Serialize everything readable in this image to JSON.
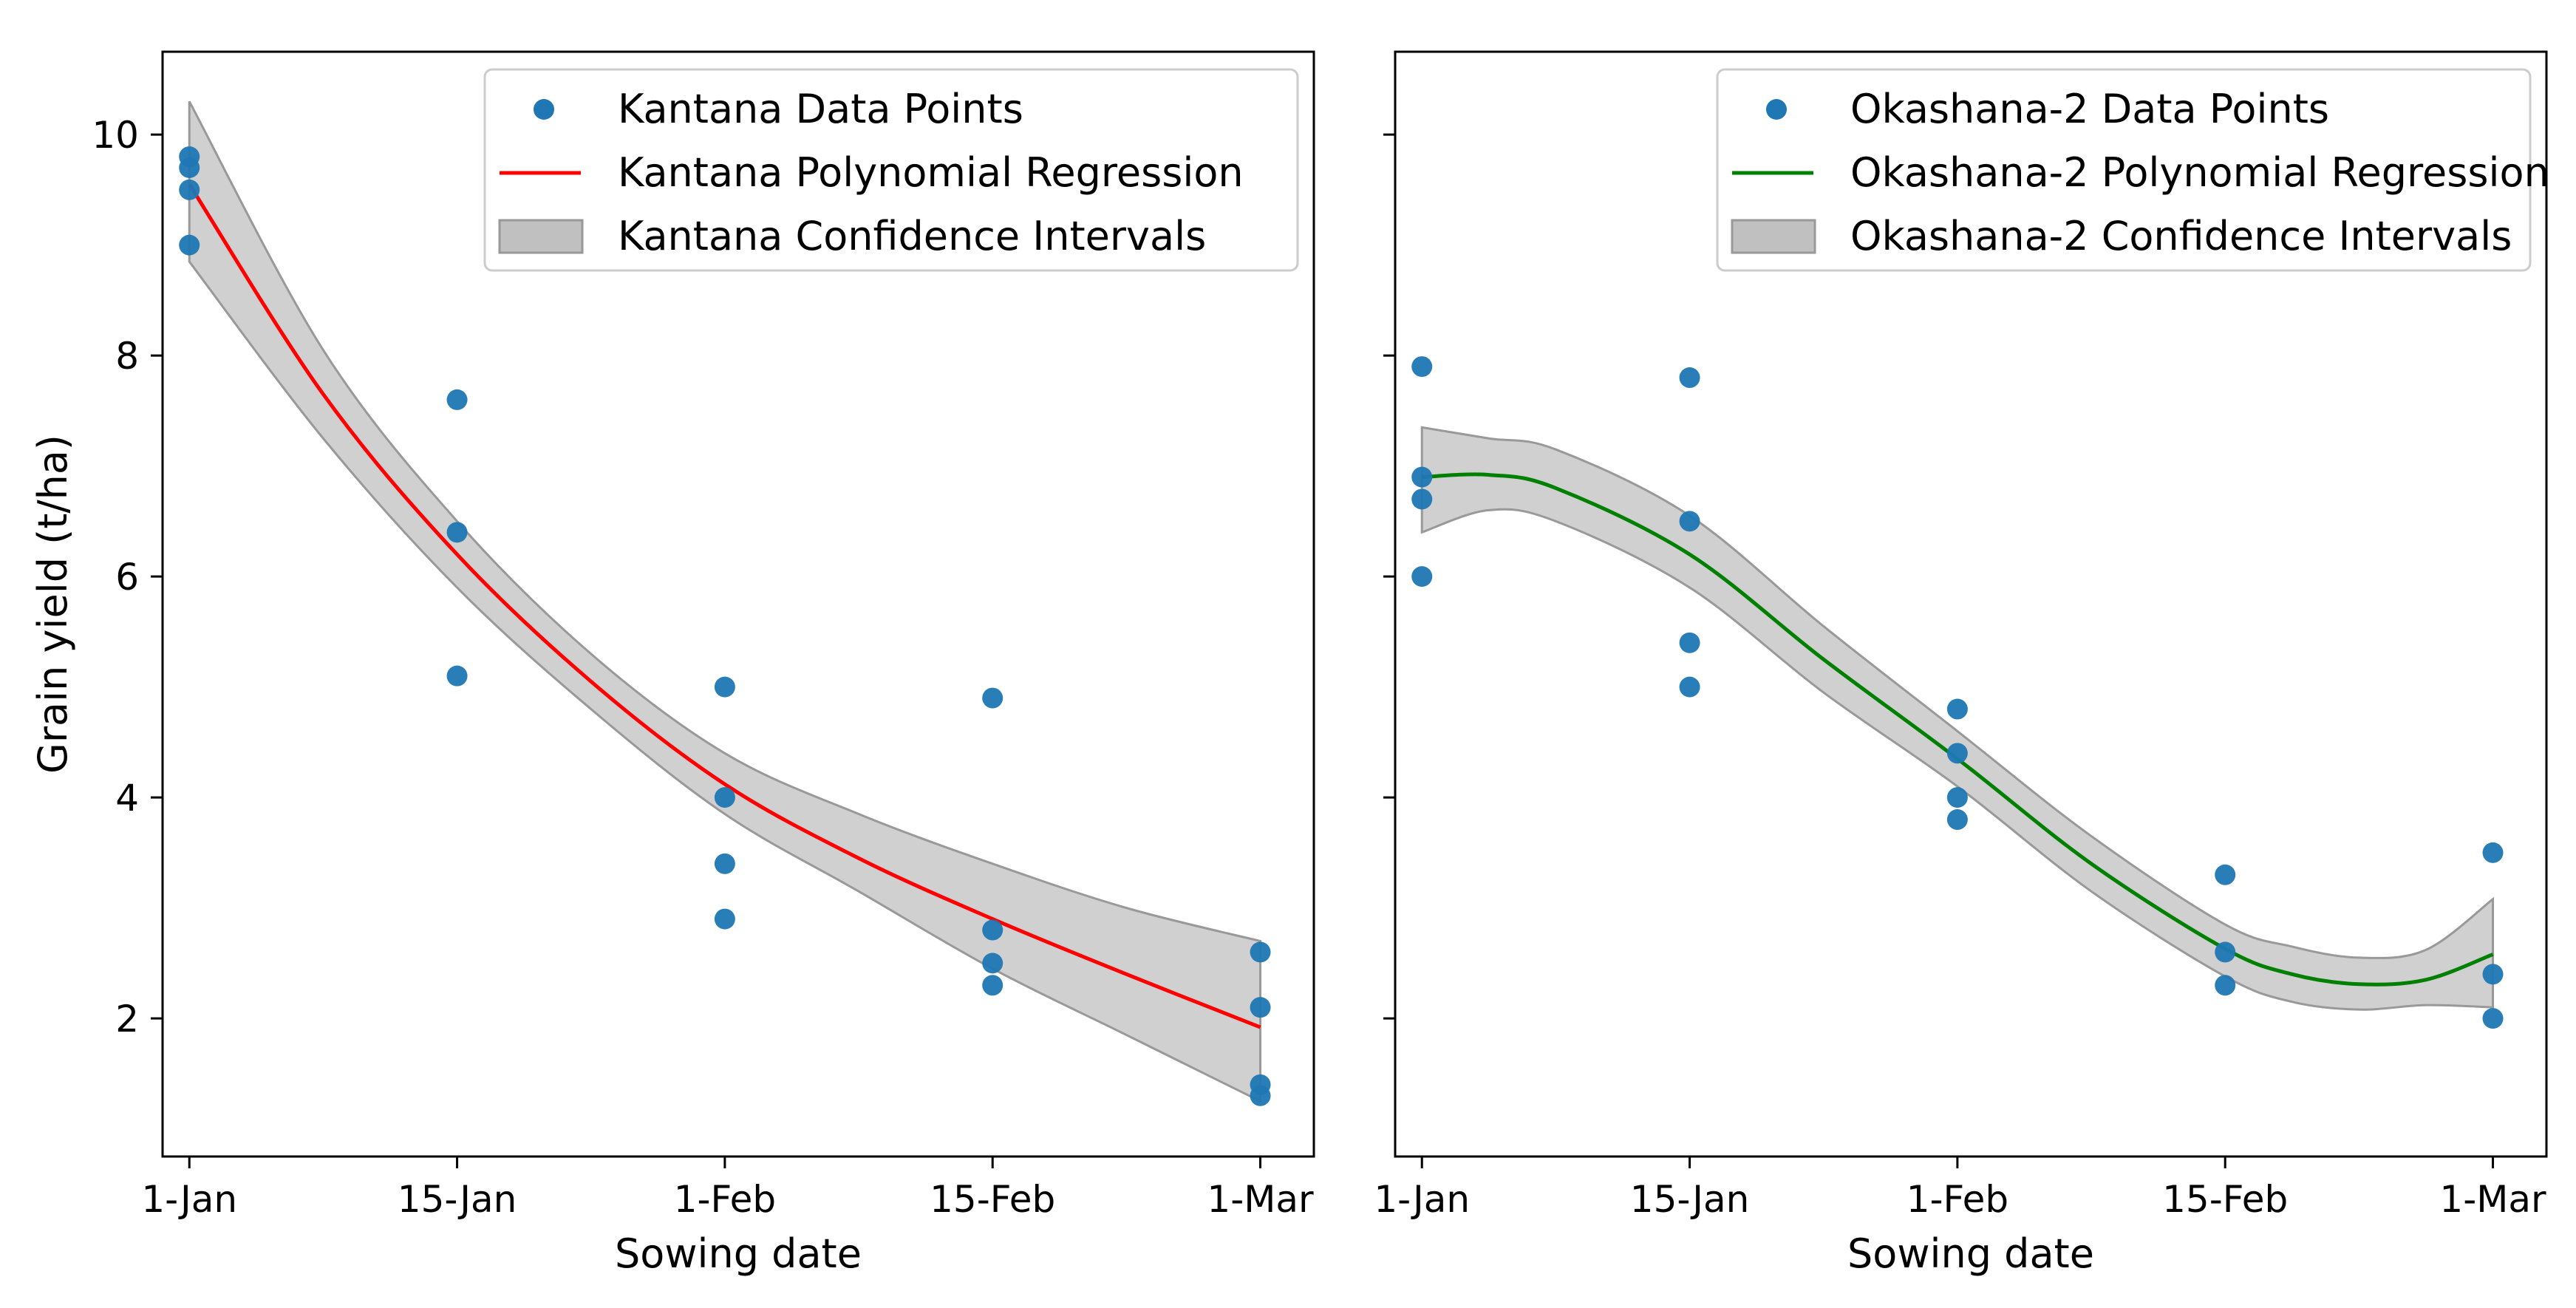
{
  "chart_data": [
    {
      "type": "scatter",
      "panel": "left",
      "xlabel": "Sowing date",
      "ylabel": "Grain yield (t/ha)",
      "categories": [
        "1-Jan",
        "15-Jan",
        "1-Feb",
        "15-Feb",
        "1-Mar"
      ],
      "xlim": [
        -0.1,
        4.2
      ],
      "ylim": [
        0.75,
        10.75
      ],
      "yticks": [
        "2",
        "4",
        "6",
        "8",
        "10"
      ],
      "point_color": "#1f77b4",
      "line_color": "#ff0000",
      "band_color": "#c0c0c0",
      "legend": {
        "placement": "top-right",
        "points": "Kantana Data Points",
        "line": "Kantana Polynomial Regression",
        "band": "Kantana Confidence Intervals"
      },
      "points": [
        {
          "x": 0,
          "y": 9.8
        },
        {
          "x": 0,
          "y": 9.7
        },
        {
          "x": 0,
          "y": 9.5
        },
        {
          "x": 0,
          "y": 9.0
        },
        {
          "x": 1,
          "y": 7.6
        },
        {
          "x": 1,
          "y": 6.4
        },
        {
          "x": 1,
          "y": 5.1
        },
        {
          "x": 2,
          "y": 5.0
        },
        {
          "x": 2,
          "y": 4.0
        },
        {
          "x": 2,
          "y": 3.4
        },
        {
          "x": 2,
          "y": 2.9
        },
        {
          "x": 3,
          "y": 4.9
        },
        {
          "x": 3,
          "y": 2.8
        },
        {
          "x": 3,
          "y": 2.5
        },
        {
          "x": 3,
          "y": 2.3
        },
        {
          "x": 4,
          "y": 2.6
        },
        {
          "x": 4,
          "y": 2.1
        },
        {
          "x": 4,
          "y": 1.4
        },
        {
          "x": 4,
          "y": 1.3
        }
      ],
      "regression": [
        {
          "x": 0,
          "y": 9.55,
          "lo": 8.85,
          "hi": 10.3
        },
        {
          "x": 0.5,
          "y": 7.65,
          "lo": 7.25,
          "hi": 8.05
        },
        {
          "x": 1,
          "y": 6.2,
          "lo": 5.9,
          "hi": 6.5
        },
        {
          "x": 1.5,
          "y": 5.05,
          "lo": 4.8,
          "hi": 5.3
        },
        {
          "x": 2,
          "y": 4.12,
          "lo": 3.85,
          "hi": 4.4
        },
        {
          "x": 2.5,
          "y": 3.45,
          "lo": 3.15,
          "hi": 3.85
        },
        {
          "x": 3,
          "y": 2.9,
          "lo": 2.45,
          "hi": 3.4
        },
        {
          "x": 3.5,
          "y": 2.4,
          "lo": 1.85,
          "hi": 3.0
        },
        {
          "x": 4,
          "y": 1.92,
          "lo": 1.25,
          "hi": 2.7
        }
      ]
    },
    {
      "type": "scatter",
      "panel": "right",
      "xlabel": "Sowing date",
      "ylabel": "",
      "categories": [
        "1-Jan",
        "15-Jan",
        "1-Feb",
        "15-Feb",
        "1-Mar"
      ],
      "xlim": [
        -0.1,
        4.2
      ],
      "ylim": [
        0.75,
        10.75
      ],
      "yticks": [
        "",
        "",
        "",
        "",
        ""
      ],
      "point_color": "#1f77b4",
      "line_color": "#008000",
      "band_color": "#c0c0c0",
      "legend": {
        "placement": "top-right",
        "points": "Okashana-2 Data Points",
        "line": "Okashana-2 Polynomial Regression",
        "band": "Okashana-2 Confidence Intervals"
      },
      "points": [
        {
          "x": 0,
          "y": 7.9
        },
        {
          "x": 0,
          "y": 6.9
        },
        {
          "x": 0,
          "y": 6.7
        },
        {
          "x": 0,
          "y": 6.0
        },
        {
          "x": 1,
          "y": 7.8
        },
        {
          "x": 1,
          "y": 6.5
        },
        {
          "x": 1,
          "y": 5.4
        },
        {
          "x": 1,
          "y": 5.0
        },
        {
          "x": 2,
          "y": 4.8
        },
        {
          "x": 2,
          "y": 4.4
        },
        {
          "x": 2,
          "y": 4.0
        },
        {
          "x": 2,
          "y": 3.8
        },
        {
          "x": 3,
          "y": 3.3
        },
        {
          "x": 3,
          "y": 2.6
        },
        {
          "x": 3,
          "y": 2.3
        },
        {
          "x": 4,
          "y": 3.5
        },
        {
          "x": 4,
          "y": 2.4
        },
        {
          "x": 4,
          "y": 2.0
        }
      ],
      "regression": [
        {
          "x": 0,
          "y": 6.9,
          "lo": 6.4,
          "hi": 7.35
        },
        {
          "x": 0.25,
          "y": 6.92,
          "lo": 6.6,
          "hi": 7.25
        },
        {
          "x": 0.5,
          "y": 6.8,
          "lo": 6.5,
          "hi": 7.15
        },
        {
          "x": 1,
          "y": 6.2,
          "lo": 5.9,
          "hi": 6.55
        },
        {
          "x": 1.5,
          "y": 5.25,
          "lo": 4.95,
          "hi": 5.55
        },
        {
          "x": 2,
          "y": 4.35,
          "lo": 4.1,
          "hi": 4.6
        },
        {
          "x": 2.5,
          "y": 3.4,
          "lo": 3.15,
          "hi": 3.65
        },
        {
          "x": 3,
          "y": 2.63,
          "lo": 2.38,
          "hi": 2.85
        },
        {
          "x": 3.25,
          "y": 2.4,
          "lo": 2.15,
          "hi": 2.65
        },
        {
          "x": 3.5,
          "y": 2.31,
          "lo": 2.08,
          "hi": 2.55
        },
        {
          "x": 3.75,
          "y": 2.35,
          "lo": 2.12,
          "hi": 2.62
        },
        {
          "x": 4,
          "y": 2.58,
          "lo": 2.1,
          "hi": 3.08
        }
      ]
    }
  ]
}
